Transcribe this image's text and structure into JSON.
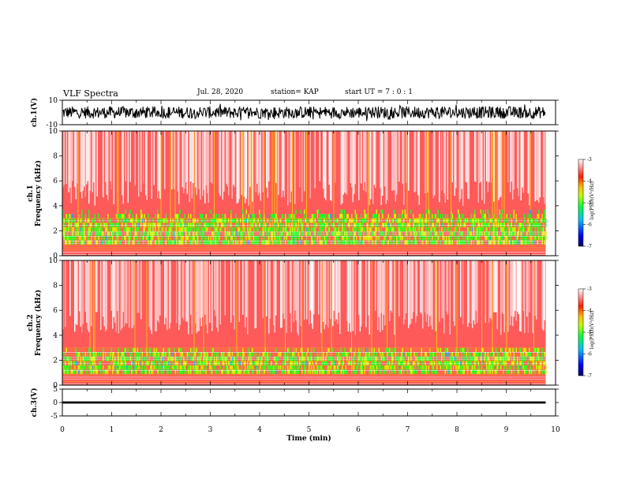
{
  "header": {
    "title": "VLF Spectra",
    "date": "Jul. 28, 2020",
    "station": "station= KAP",
    "start": "start  UT =   7 : 0  : 1"
  },
  "colors": {
    "spectrogram_high": "#ffffff",
    "spectrogram_mid": "#ff2020",
    "spectrogram_low": "#10ff10",
    "waveform": "#000000"
  },
  "chart_data": [
    {
      "id": "ch1-waveform",
      "type": "line",
      "ylabel": "ch.1(V)",
      "ylim": [
        -10,
        10
      ],
      "yticks": [
        "10",
        "-10"
      ],
      "xlim": [
        0,
        10
      ],
      "y_envelope": [
        -5,
        5
      ],
      "description_of_series": "continuous noisy waveform spanning full time range"
    },
    {
      "id": "ch1-spectrogram",
      "type": "heatmap",
      "ylabel": "ch.1\nFrequency (kHz)",
      "ylim": [
        0,
        10
      ],
      "yticks": [
        "0",
        "2",
        "4",
        "6",
        "8",
        "10"
      ],
      "xlim": [
        0,
        10
      ],
      "data_end_min": 9.8,
      "colorbar": {
        "label": "log(PSD)(V²/Hz)",
        "range": [
          -7,
          -3
        ],
        "ticks": [
          "-3",
          "-4",
          "-5",
          "-6",
          "-7"
        ]
      }
    },
    {
      "id": "ch2-spectrogram",
      "type": "heatmap",
      "ylabel": "ch.2\nFrequency (kHz)",
      "ylim": [
        0,
        10
      ],
      "yticks": [
        "0",
        "2",
        "4",
        "6",
        "8",
        "10"
      ],
      "xlim": [
        0,
        10
      ],
      "data_end_min": 9.8,
      "colorbar": {
        "label": "log(PSD)(V²/Hz)",
        "range": [
          -7,
          -3
        ],
        "ticks": [
          "-3",
          "-4",
          "-5",
          "-6",
          "-7"
        ]
      }
    },
    {
      "id": "ch3-waveform",
      "type": "line",
      "ylabel": "ch.3(V)",
      "ylim": [
        -5,
        5
      ],
      "yticks": [
        "5",
        "0",
        "-5"
      ],
      "xlim": [
        0,
        10
      ],
      "level": 0,
      "band": [
        -0.4,
        0.4
      ]
    }
  ],
  "xaxis": {
    "label": "Time (min)",
    "ticks": [
      "0",
      "1",
      "2",
      "3",
      "4",
      "5",
      "6",
      "7",
      "8",
      "9",
      "10"
    ]
  }
}
